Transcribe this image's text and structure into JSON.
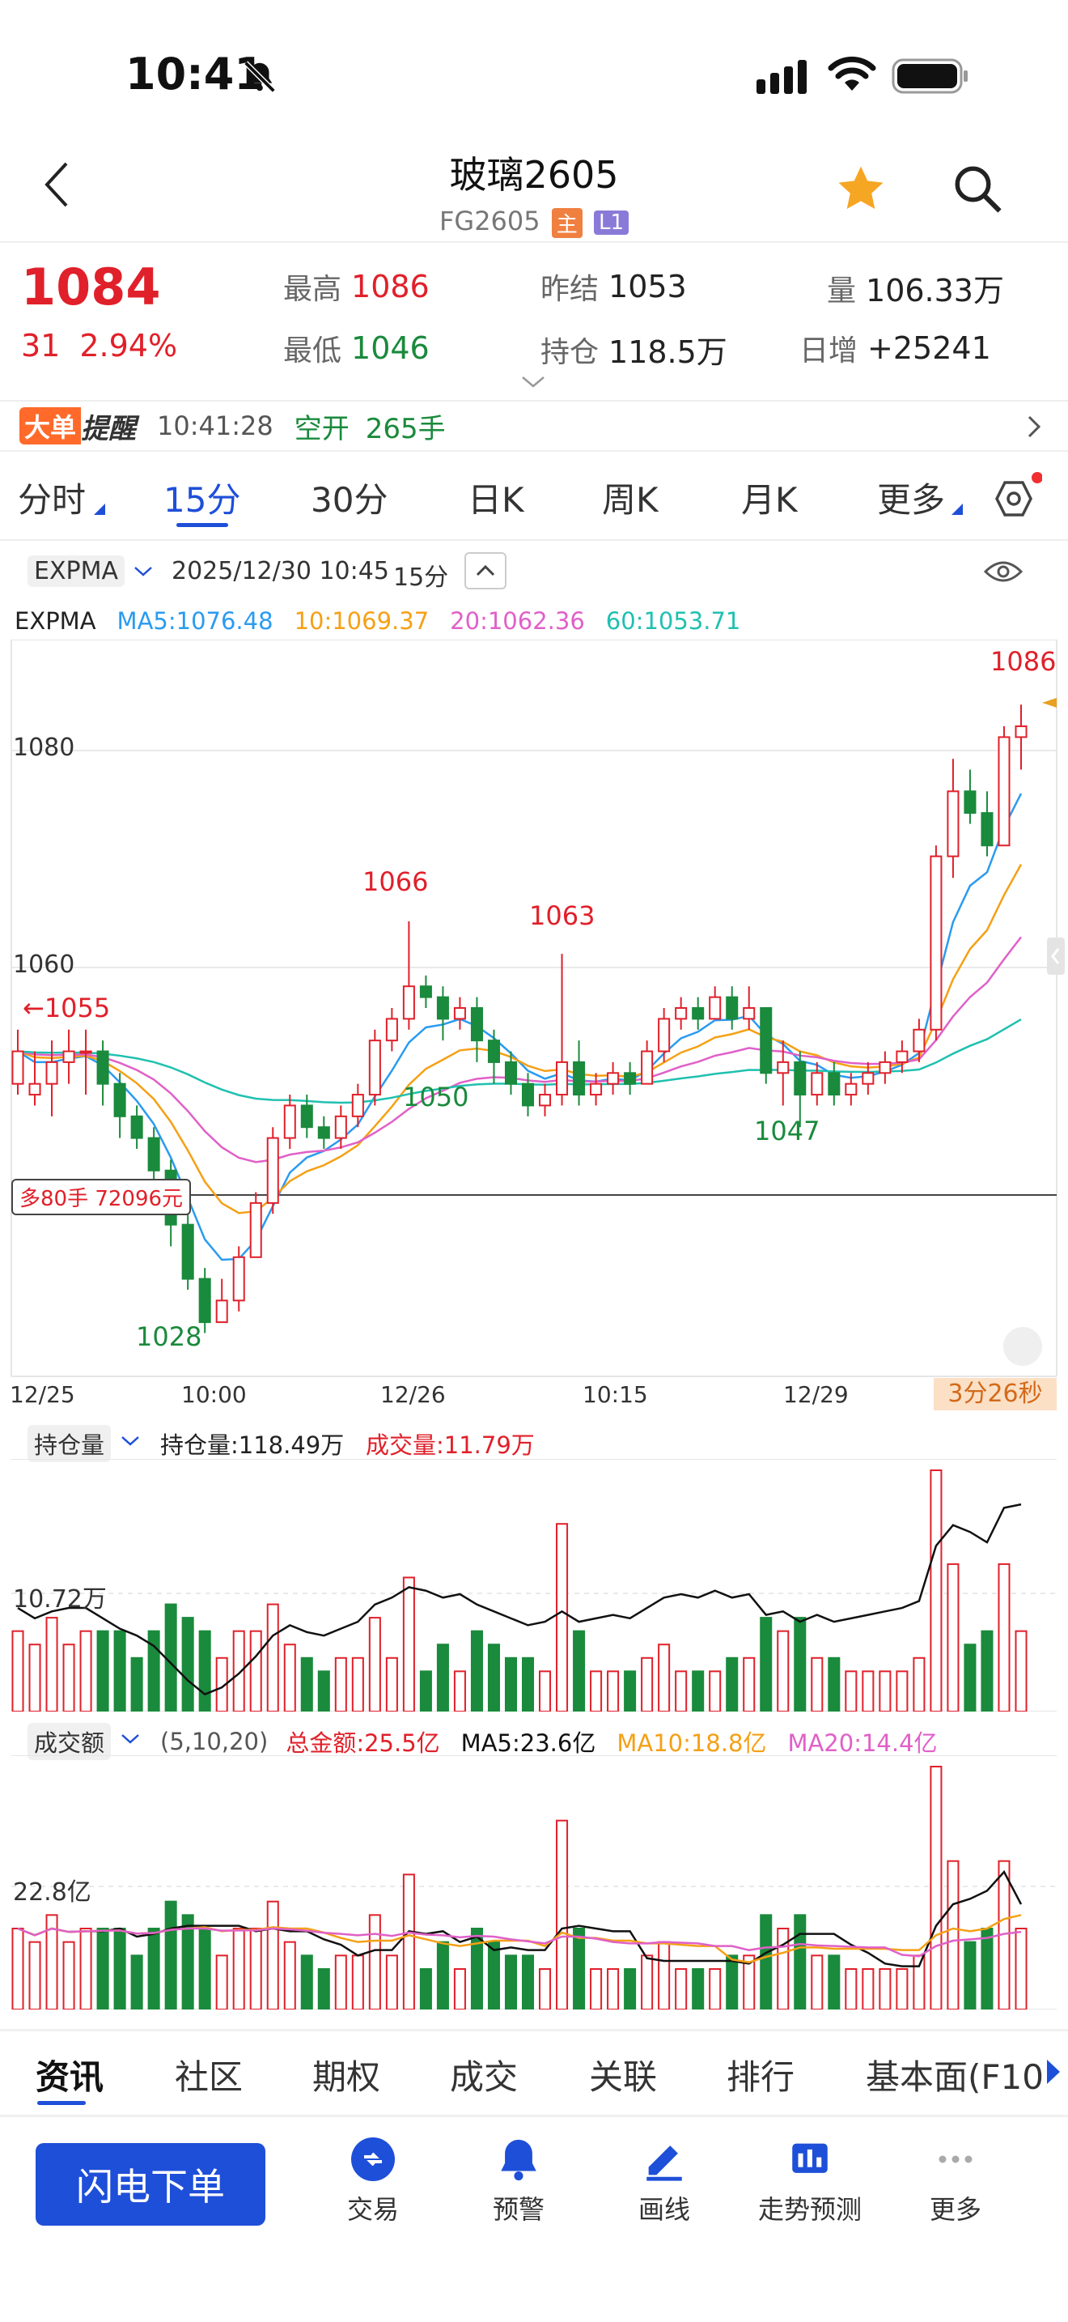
{
  "status_bar": {
    "time": "10:41"
  },
  "header": {
    "title": "玻璃2605",
    "code": "FG2605",
    "tag_main": "主",
    "tag_level": "L1"
  },
  "quote": {
    "price": "1084",
    "change": "31",
    "change_pct": "2.94%",
    "high_label": "最高",
    "high": "1086",
    "low_label": "最低",
    "low": "1046",
    "prev_settle_label": "昨结",
    "prev_settle": "1053",
    "open_interest_label": "持仓",
    "open_interest": "118.5万",
    "volume_label": "量",
    "volume": "106.33万",
    "daily_increase_label": "日增",
    "daily_increase": "+25241"
  },
  "alert": {
    "badge": "大单",
    "label": "提醒",
    "time": "10:41:28",
    "action": "空开",
    "qty": "265手"
  },
  "period_tabs": [
    "分时",
    "15分",
    "30分",
    "日K",
    "周K",
    "月K",
    "更多"
  ],
  "active_period": "15分",
  "chart_header": {
    "indicator": "EXPMA",
    "datetime": "2025/12/30 10:45",
    "period": "15分"
  },
  "ma_legend": {
    "name": "EXPMA",
    "ma5": "MA5:1076.48",
    "ma10": "10:1069.37",
    "ma20": "20:1062.36",
    "ma60": "60:1053.71"
  },
  "price_chart_labels": {
    "y1": "1080",
    "y2": "1060",
    "hi_now": "1086",
    "hi1": "1066",
    "hi2": "1063",
    "left": "←1055",
    "low1": "1028",
    "low2": "1050",
    "low3": "1047",
    "position_note": "多80手 72096元"
  },
  "time_axis": [
    "12/25",
    "10:00",
    "12/26",
    "10:15",
    "12/29"
  ],
  "countdown": "3分26秒",
  "oi_panel": {
    "selector": "持仓量",
    "oi": "持仓量:118.49万",
    "vol": "成交量:11.79万",
    "ref": "10.72万"
  },
  "amt_panel": {
    "selector": "成交额",
    "params": "(5,10,20)",
    "total": "总金额:25.5亿",
    "ma5": "MA5:23.6亿",
    "ma10": "MA10:18.8亿",
    "ma20": "MA20:14.4亿",
    "ref": "22.8亿"
  },
  "bottom_tabs": [
    "资讯",
    "社区",
    "期权",
    "成交",
    "关联",
    "排行",
    "基本面(F10"
  ],
  "order_button": "闪电下单",
  "tools": [
    "交易",
    "预警",
    "画线",
    "走势预测",
    "更多"
  ],
  "colors": {
    "up": "#e0202a",
    "down": "#1a8a3c",
    "accent": "#1e4fd8",
    "ma5": "#2a9bf0",
    "ma10": "#f5a015",
    "ma20": "#e060c8",
    "ma60": "#20c0b0"
  },
  "chart_data": {
    "type": "candlestick",
    "candles": [
      [
        1051,
        1054,
        1050,
        1056
      ],
      [
        1050,
        1051,
        1049,
        1054
      ],
      [
        1051,
        1053,
        1048,
        1055
      ],
      [
        1053,
        1054,
        1051,
        1056
      ],
      [
        1054,
        1054,
        1050,
        1056
      ],
      [
        1054,
        1051,
        1049,
        1055
      ],
      [
        1051,
        1048,
        1046,
        1052
      ],
      [
        1048,
        1046,
        1045,
        1049
      ],
      [
        1046,
        1043,
        1041,
        1047
      ],
      [
        1043,
        1038,
        1036,
        1044
      ],
      [
        1038,
        1033,
        1032,
        1039
      ],
      [
        1033,
        1029,
        1028,
        1034
      ],
      [
        1029,
        1031,
        1029,
        1033
      ],
      [
        1031,
        1035,
        1030,
        1036
      ],
      [
        1035,
        1040,
        1035,
        1041
      ],
      [
        1040,
        1046,
        1039,
        1047
      ],
      [
        1046,
        1049,
        1045,
        1050
      ],
      [
        1049,
        1047,
        1046,
        1050
      ],
      [
        1047,
        1046,
        1045,
        1048
      ],
      [
        1046,
        1048,
        1045,
        1049
      ],
      [
        1048,
        1050,
        1047,
        1051
      ],
      [
        1050,
        1055,
        1049,
        1056
      ],
      [
        1055,
        1057,
        1054,
        1058
      ],
      [
        1057,
        1060,
        1056,
        1066
      ],
      [
        1060,
        1059,
        1058,
        1061
      ],
      [
        1059,
        1057,
        1055,
        1060
      ],
      [
        1057,
        1058,
        1056,
        1059
      ],
      [
        1058,
        1055,
        1053,
        1059
      ],
      [
        1055,
        1053,
        1051,
        1056
      ],
      [
        1053,
        1051,
        1050,
        1054
      ],
      [
        1051,
        1049,
        1048,
        1052
      ],
      [
        1049,
        1050,
        1048,
        1051
      ],
      [
        1050,
        1053,
        1049,
        1063
      ],
      [
        1053,
        1050,
        1049,
        1055
      ],
      [
        1050,
        1051,
        1049,
        1052
      ],
      [
        1051,
        1052,
        1050,
        1053
      ],
      [
        1052,
        1051,
        1050,
        1053
      ],
      [
        1051,
        1054,
        1051,
        1055
      ],
      [
        1054,
        1057,
        1053,
        1058
      ],
      [
        1057,
        1058,
        1056,
        1059
      ],
      [
        1058,
        1057,
        1056,
        1059
      ],
      [
        1057,
        1059,
        1057,
        1060
      ],
      [
        1059,
        1057,
        1056,
        1060
      ],
      [
        1057,
        1058,
        1056,
        1060
      ],
      [
        1058,
        1052,
        1051,
        1058
      ],
      [
        1052,
        1053,
        1049,
        1055
      ],
      [
        1053,
        1050,
        1047,
        1054
      ],
      [
        1050,
        1052,
        1049,
        1053
      ],
      [
        1052,
        1050,
        1049,
        1053
      ],
      [
        1050,
        1051,
        1049,
        1052
      ],
      [
        1051,
        1052,
        1050,
        1053
      ],
      [
        1052,
        1053,
        1051,
        1054
      ],
      [
        1053,
        1054,
        1052,
        1055
      ],
      [
        1054,
        1056,
        1053,
        1057
      ],
      [
        1056,
        1072,
        1055,
        1073
      ],
      [
        1072,
        1078,
        1070,
        1081
      ],
      [
        1078,
        1076,
        1075,
        1080
      ],
      [
        1076,
        1073,
        1072,
        1078
      ],
      [
        1073,
        1083,
        1073,
        1084
      ],
      [
        1083,
        1084,
        1080,
        1086
      ]
    ],
    "ylim": [
      1024,
      1092
    ]
  }
}
